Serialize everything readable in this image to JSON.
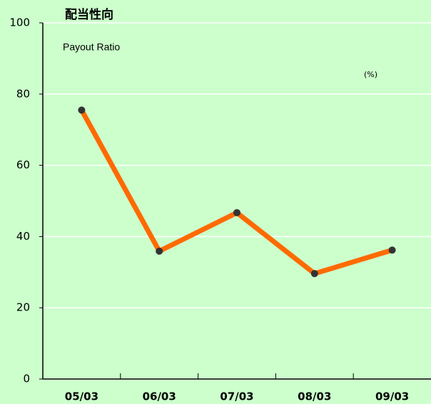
{
  "chart_data": {
    "type": "line",
    "title": "配当性向",
    "subtitle": "Payout Ratio",
    "unit": "(%)",
    "categories": [
      "05/03",
      "06/03",
      "07/03",
      "08/03",
      "09/03"
    ],
    "series": [
      {
        "name": "Payout Ratio",
        "color": "#ff6a00",
        "values": [
          75.5,
          35.9,
          46.7,
          29.6,
          36.2
        ]
      }
    ],
    "ylim": [
      0,
      100
    ],
    "yticks": [
      0,
      20,
      40,
      60,
      80,
      100
    ],
    "grid": true
  }
}
